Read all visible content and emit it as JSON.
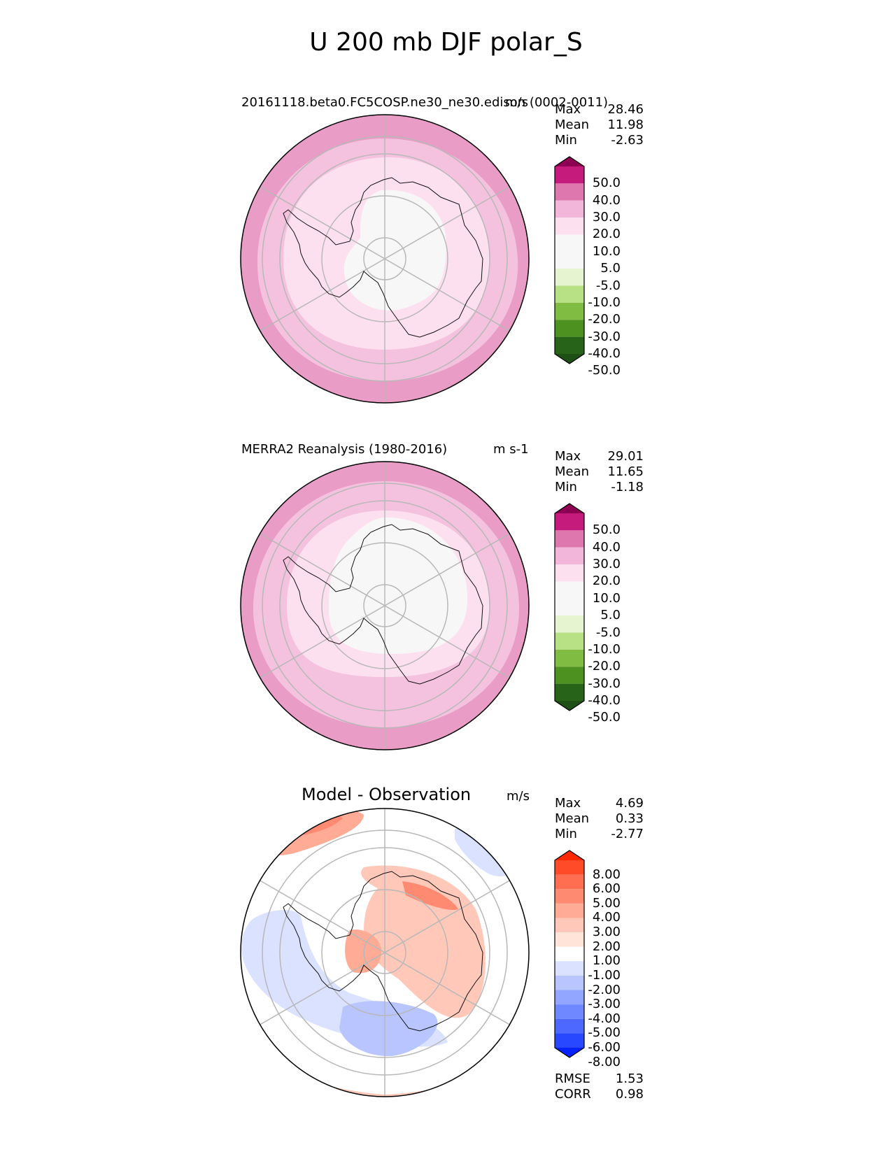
{
  "title": "U 200 mb DJF polar_S",
  "panels": [
    {
      "title": "20161118.beta0.FC5COSP.ne30_ne30.edison (0002-0011)",
      "units": "m/s",
      "stats": [
        {
          "label": "Max",
          "value": "28.46"
        },
        {
          "label": "Mean",
          "value": "11.98"
        },
        {
          "label": "Min",
          "value": "-2.63"
        }
      ],
      "colorbar_ticks": [
        "50.0",
        "40.0",
        "30.0",
        "20.0",
        "10.0",
        "5.0",
        "-5.0",
        "-10.0",
        "-20.0",
        "-30.0",
        "-40.0",
        "-50.0"
      ],
      "colorbar_colors": [
        "#8e0152",
        "#c51b7d",
        "#de77ae",
        "#f1b6da",
        "#fde0ef",
        "#f7f7f7",
        "#f7f7f7",
        "#e6f5d0",
        "#b8e186",
        "#7fbc41",
        "#4d9221",
        "#276419",
        "#1e4f14"
      ]
    },
    {
      "title": "MERRA2 Reanalysis (1980-2016)",
      "units": "m s-1",
      "stats": [
        {
          "label": "Max",
          "value": "29.01"
        },
        {
          "label": "Mean",
          "value": "11.65"
        },
        {
          "label": "Min",
          "value": "-1.18"
        }
      ],
      "colorbar_ticks": [
        "50.0",
        "40.0",
        "30.0",
        "20.0",
        "10.0",
        "5.0",
        "-5.0",
        "-10.0",
        "-20.0",
        "-30.0",
        "-40.0",
        "-50.0"
      ],
      "colorbar_colors": [
        "#8e0152",
        "#c51b7d",
        "#de77ae",
        "#f1b6da",
        "#fde0ef",
        "#f7f7f7",
        "#f7f7f7",
        "#e6f5d0",
        "#b8e186",
        "#7fbc41",
        "#4d9221",
        "#276419",
        "#1e4f14"
      ]
    },
    {
      "title": "Model - Observation",
      "units": "m/s",
      "stats": [
        {
          "label": "Max",
          "value": "4.69"
        },
        {
          "label": "Mean",
          "value": "0.33"
        },
        {
          "label": "Min",
          "value": "-2.77"
        }
      ],
      "colorbar_ticks": [
        "8.00",
        "6.00",
        "5.00",
        "4.00",
        "3.00",
        "2.00",
        "1.00",
        "-1.00",
        "-2.00",
        "-3.00",
        "-4.00",
        "-5.00",
        "-6.00",
        "-8.00"
      ],
      "colorbar_colors": [
        "#ff2800",
        "#ff4b28",
        "#ff6e50",
        "#ff8a72",
        "#ffab96",
        "#ffc8b8",
        "#ffe4da",
        "#ffffff",
        "#dbe2ff",
        "#b8c5ff",
        "#93a6ff",
        "#6f87ff",
        "#4c68ff",
        "#2848ff",
        "#0522ff"
      ],
      "extra_stats": [
        {
          "label": "RMSE",
          "value": "1.53"
        },
        {
          "label": "CORR",
          "value": "0.98"
        }
      ]
    }
  ],
  "chart_data": [
    {
      "type": "heatmap",
      "title": "20161118.beta0.FC5COSP.ne30_ne30.edison (0002-0011)",
      "projection": "south polar stereographic",
      "variable": "U 200 mb DJF",
      "units": "m/s",
      "max": 28.46,
      "mean": 11.98,
      "min": -2.63,
      "levels": [
        -50,
        -40,
        -30,
        -20,
        -10,
        -5,
        5,
        10,
        20,
        30,
        40,
        50
      ],
      "zones_inner_to_outer": [
        "5.0 to -5.0 (near zero, interior)",
        "5.0-10.0",
        "10.0-20.0",
        "20.0-30.0 (outer ring)"
      ]
    },
    {
      "type": "heatmap",
      "title": "MERRA2 Reanalysis (1980-2016)",
      "projection": "south polar stereographic",
      "variable": "U 200 mb DJF",
      "units": "m s-1",
      "max": 29.01,
      "mean": 11.65,
      "min": -1.18,
      "levels": [
        -50,
        -40,
        -30,
        -20,
        -10,
        -5,
        5,
        10,
        20,
        30,
        40,
        50
      ],
      "zones_inner_to_outer": [
        "5.0 to -5.0 (near zero, interior)",
        "5.0-10.0",
        "10.0-20.0",
        "20.0-30.0 (outer ring)"
      ]
    },
    {
      "type": "heatmap",
      "title": "Model - Observation",
      "projection": "south polar stereographic",
      "units": "m/s",
      "max": 4.69,
      "mean": 0.33,
      "min": -2.77,
      "rmse": 1.53,
      "corr": 0.98,
      "levels": [
        -8,
        -6,
        -5,
        -4,
        -3,
        -2,
        -1,
        1,
        2,
        3,
        4,
        5,
        6,
        8
      ]
    }
  ]
}
